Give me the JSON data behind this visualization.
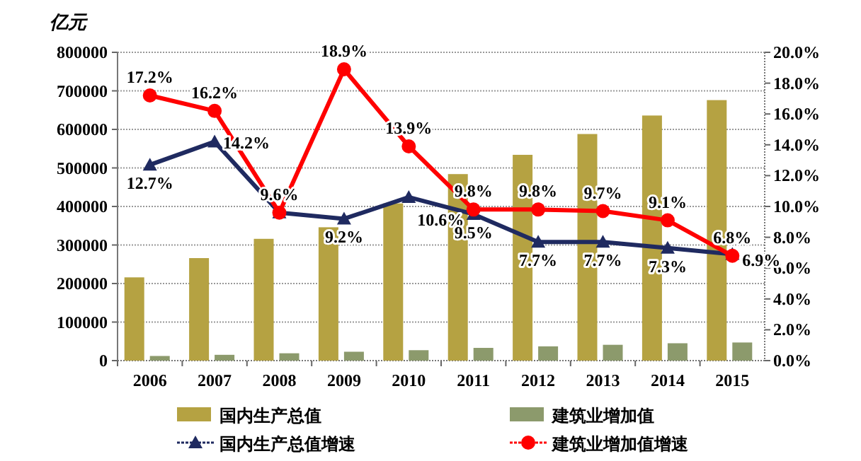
{
  "chart_data": {
    "type": "bar",
    "ylabel": "亿元",
    "categories": [
      "2006",
      "2007",
      "2008",
      "2009",
      "2010",
      "2011",
      "2012",
      "2013",
      "2014",
      "2015"
    ],
    "series": [
      {
        "name": "国内生产总值",
        "color": "#b5a242",
        "values": [
          216000,
          266000,
          316000,
          346000,
          408000,
          484000,
          534000,
          588000,
          636000,
          676000
        ]
      },
      {
        "name": "建筑业增加值",
        "color": "#8c9a6c",
        "values": [
          12000,
          15000,
          19000,
          23000,
          27000,
          33000,
          37000,
          41000,
          45000,
          47000
        ]
      },
      {
        "name": "国内生产总值增速",
        "type": "line",
        "axis": "y2",
        "color": "#1f2a60",
        "marker": "triangle",
        "values": [
          12.7,
          14.2,
          9.6,
          9.2,
          10.6,
          9.5,
          7.7,
          7.7,
          7.3,
          6.9
        ],
        "value_labels": [
          "12.7%",
          "14.2%",
          null,
          "9.2%",
          "10.6%",
          "9.5%",
          "7.7%",
          "7.7%",
          "7.3%",
          "6.9%"
        ]
      },
      {
        "name": "建筑业增加值增速",
        "type": "line",
        "axis": "y2",
        "color": "#ff0000",
        "marker": "circle",
        "values": [
          17.2,
          16.2,
          9.6,
          18.9,
          13.9,
          9.8,
          9.8,
          9.7,
          9.1,
          6.8
        ],
        "value_labels": [
          "17.2%",
          "16.2%",
          "9.6%",
          "18.9%",
          "13.9%",
          "9.8%",
          "9.8%",
          "9.7%",
          "9.1%",
          "6.8%"
        ]
      }
    ],
    "ylim": [
      0,
      800000
    ],
    "yticks": [
      0,
      100000,
      200000,
      300000,
      400000,
      500000,
      600000,
      700000,
      800000
    ],
    "y2lim": [
      0,
      20
    ],
    "y2ticks": [
      {
        "value": 0,
        "label": "0.0%"
      },
      {
        "value": 2,
        "label": "2.0%"
      },
      {
        "value": 4,
        "label": "4.0%"
      },
      {
        "value": 6,
        "label": "6.0%"
      },
      {
        "value": 8,
        "label": "8.0%"
      },
      {
        "value": 10,
        "label": "10.0%"
      },
      {
        "value": 12,
        "label": "12.0%"
      },
      {
        "value": 14,
        "label": "14.0%"
      },
      {
        "value": 16,
        "label": "16.0%"
      },
      {
        "value": 18,
        "label": "18.0%"
      },
      {
        "value": 20,
        "label": "20.0%"
      }
    ],
    "grid": "y",
    "legend": "bottom"
  }
}
